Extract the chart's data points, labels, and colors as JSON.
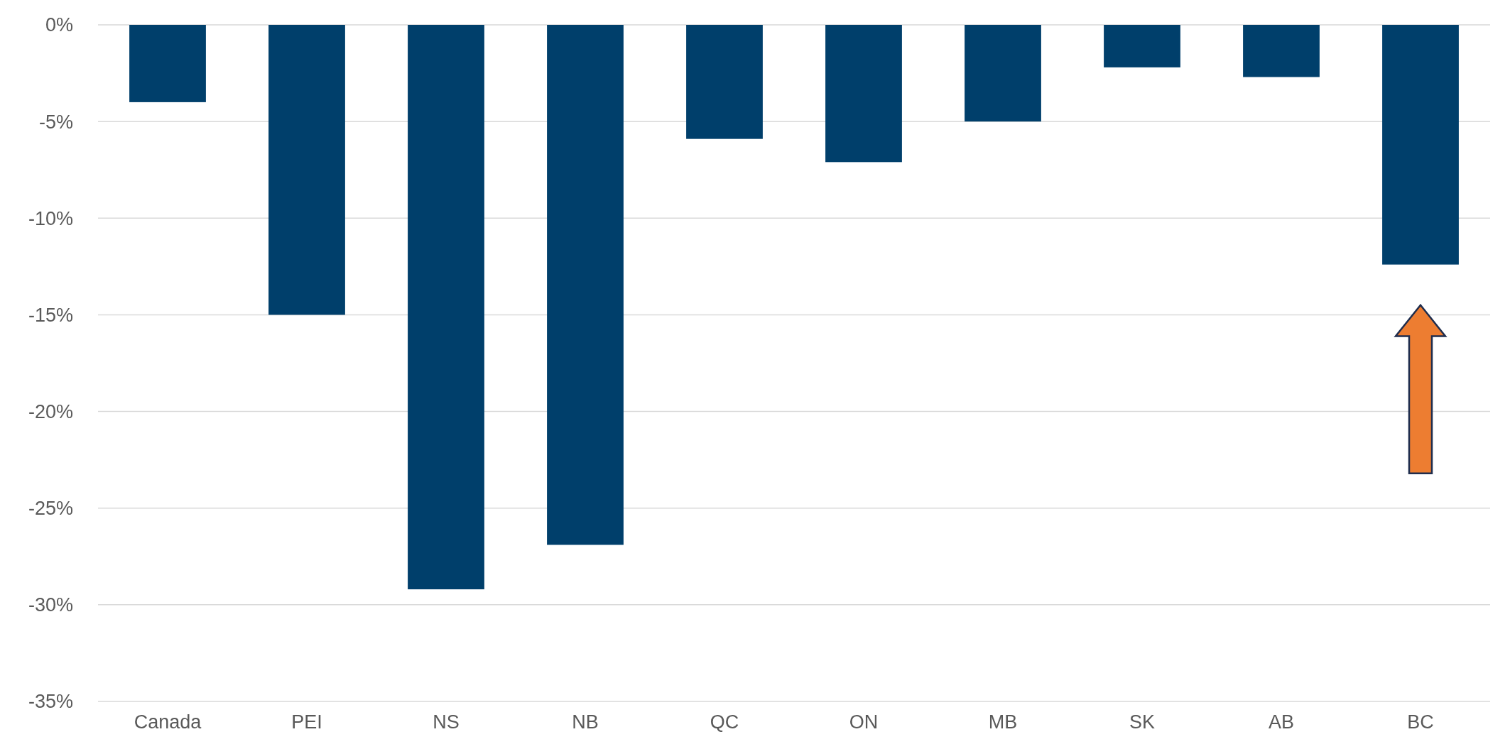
{
  "chart_data": {
    "type": "bar",
    "categories": [
      "Canada",
      "PEI",
      "NS",
      "NB",
      "QC",
      "ON",
      "MB",
      "SK",
      "AB",
      "BC"
    ],
    "values": [
      -4.0,
      -15.0,
      -29.2,
      -26.9,
      -5.9,
      -7.1,
      -5.0,
      -2.2,
      -2.7,
      -12.4
    ],
    "color": "#003f6b",
    "ylim": [
      -35,
      0
    ],
    "yticks": [
      {
        "value": 0,
        "label": "0%"
      },
      {
        "value": -5,
        "label": "-5%"
      },
      {
        "value": -10,
        "label": "-10%"
      },
      {
        "value": -15,
        "label": "-15%"
      },
      {
        "value": -20,
        "label": "-20%"
      },
      {
        "value": -25,
        "label": "-25%"
      },
      {
        "value": -30,
        "label": "-30%"
      },
      {
        "value": -35,
        "label": "-35%"
      }
    ],
    "grid": "y"
  }
}
